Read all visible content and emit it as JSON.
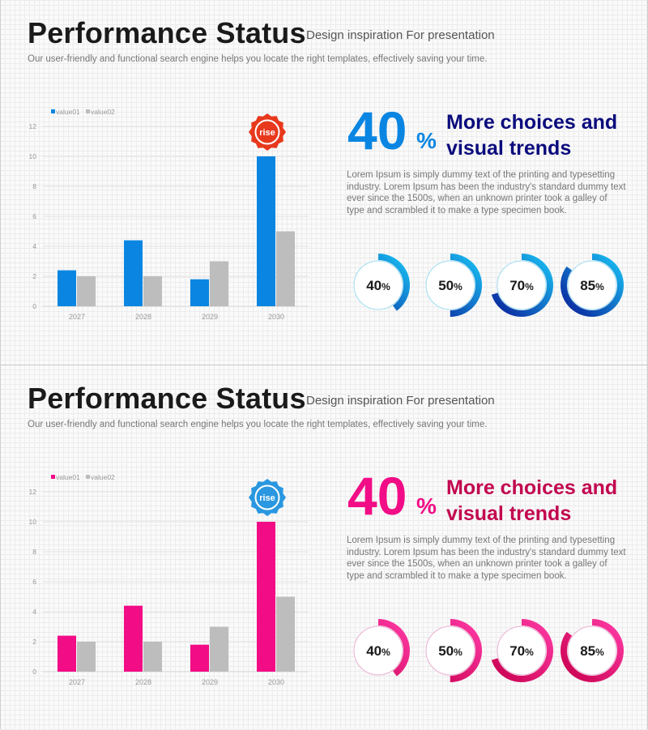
{
  "panels": [
    {
      "title": "Performance Status",
      "subtitle": "Design inspiration For presentation",
      "description": "Our user-friendly and functional search engine helps you locate the right templates, effectively  saving your time.",
      "big_number": "40",
      "big_percent": "%",
      "heading_line1": "More choices and",
      "heading_line2": "visual trends",
      "body": "Lorem Ipsum is simply dummy text of the printing and typesetting industry. Lorem Ipsum has been the industry's standard dummy text ever since the 1500s, when an unknown printer took a galley of type and scrambled it to make a type specimen book.",
      "badge_label": "rise",
      "colors": {
        "accent": "#0a86e2",
        "heading": "#0b0b7d",
        "series2": "#bdbdbd",
        "badge": "#e8391d",
        "ring_dark": "#0a1f9a",
        "ring_light": "#19c3f5",
        "ring_border": "#9fdcf0"
      },
      "rings": [
        {
          "value": 40,
          "label": "40",
          "unit": "%"
        },
        {
          "value": 50,
          "label": "50",
          "unit": "%"
        },
        {
          "value": 70,
          "label": "70",
          "unit": "%"
        },
        {
          "value": 85,
          "label": "85",
          "unit": "%"
        }
      ],
      "chart_data": {
        "type": "bar",
        "categories": [
          "2027",
          "2028",
          "2029",
          "2030"
        ],
        "series": [
          {
            "name": "value01",
            "values": [
              2.4,
              4.4,
              1.8,
              10
            ]
          },
          {
            "name": "value02",
            "values": [
              2,
              2,
              3,
              5
            ]
          }
        ],
        "yticks": [
          "0",
          "2",
          "4",
          "6",
          "8",
          "10",
          "12"
        ],
        "ylim": [
          0,
          12
        ],
        "grid": true,
        "legend": "top-left"
      }
    },
    {
      "title": "Performance Status",
      "subtitle": "Design inspiration For presentation",
      "description": "Our user-friendly and functional search engine helps you locate the right templates, effectively  saving your time.",
      "big_number": "40",
      "big_percent": "%",
      "heading_line1": "More choices and",
      "heading_line2": "visual trends",
      "body": "Lorem Ipsum is simply dummy text of the printing and typesetting industry. Lorem Ipsum has been the industry's standard dummy text ever since the 1500s, when an unknown printer took a galley of type and scrambled it to make a type specimen book.",
      "badge_label": "rise",
      "colors": {
        "accent": "#f20c86",
        "heading": "#c2054f",
        "series2": "#bdbdbd",
        "badge": "#2a97e0",
        "ring_dark": "#c8004e",
        "ring_light": "#ff3aa6",
        "ring_border": "#eab0d2"
      },
      "rings": [
        {
          "value": 40,
          "label": "40",
          "unit": "%"
        },
        {
          "value": 50,
          "label": "50",
          "unit": "%"
        },
        {
          "value": 70,
          "label": "70",
          "unit": "%"
        },
        {
          "value": 85,
          "label": "85",
          "unit": "%"
        }
      ],
      "chart_data": {
        "type": "bar",
        "categories": [
          "2027",
          "2028",
          "2029",
          "2030"
        ],
        "series": [
          {
            "name": "value01",
            "values": [
              2.4,
              4.4,
              1.8,
              10
            ]
          },
          {
            "name": "value02",
            "values": [
              2,
              2,
              3,
              5
            ]
          }
        ],
        "yticks": [
          "0",
          "2",
          "4",
          "6",
          "8",
          "10",
          "12"
        ],
        "ylim": [
          0,
          12
        ],
        "grid": true,
        "legend": "top-left"
      }
    }
  ]
}
